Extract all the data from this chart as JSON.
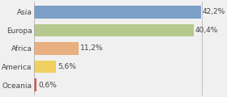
{
  "categories": [
    "Asia",
    "Europa",
    "Africa",
    "America",
    "Oceania"
  ],
  "values": [
    42.2,
    40.4,
    11.2,
    5.6,
    0.6
  ],
  "labels": [
    "42,2%",
    "40,4%",
    "11,2%",
    "5,6%",
    "0,6%"
  ],
  "bar_colors": [
    "#7b9fc7",
    "#b5c98e",
    "#e8b080",
    "#f0d060",
    "#e05050"
  ],
  "background_color": "#f0f0f0",
  "max_value": 45,
  "ylabel_fontsize": 6.5,
  "label_fontsize": 6.5,
  "figsize": [
    2.8,
    1.2
  ],
  "dpi": 100
}
